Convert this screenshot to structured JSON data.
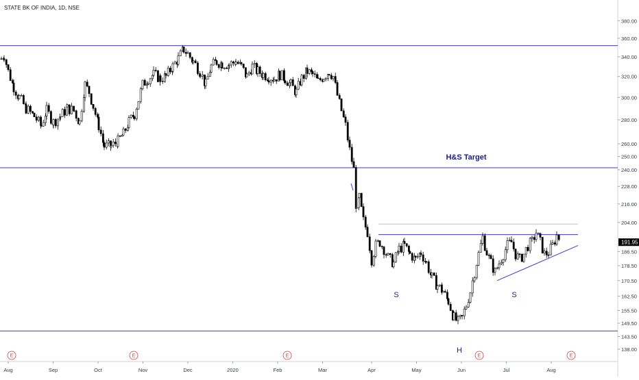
{
  "chart_data": {
    "type": "candlestick",
    "title": "STATE BK OF INDIA, 1D, NSE",
    "y_scale": "log",
    "ylim": [
      138.0,
      395.0
    ],
    "y_ticks": [
      "380.00",
      "360.00",
      "340.00",
      "320.00",
      "300.00",
      "280.00",
      "260.00",
      "250.00",
      "240.00",
      "228.00",
      "216.00",
      "204.00",
      "186.50",
      "178.50",
      "170.50",
      "162.50",
      "155.50",
      "149.50",
      "143.50",
      "138.00"
    ],
    "x_ticks": [
      "Aug",
      "Sep",
      "Oct",
      "Nov",
      "Dec",
      "2020",
      "Feb",
      "Mar",
      "Apr",
      "May",
      "Jun",
      "Jul",
      "Aug"
    ],
    "last_price": "191.95",
    "colors": {
      "up": "#ffffff",
      "down": "#000000",
      "outline": "#000000",
      "line": "#3a3ad6",
      "earnings": "#d23c3c",
      "price_tag": "#000000"
    },
    "horizontal_lines": [
      {
        "name": "resistance-top",
        "y": 352.0
      },
      {
        "name": "hs-target",
        "y": 241.5
      },
      {
        "name": "support-bottom",
        "y": 146.0
      },
      {
        "name": "neckline",
        "y": 196.5
      },
      {
        "name": "neckline-upper",
        "y": 203.0
      }
    ],
    "trendline": {
      "name": "rising-trendline",
      "from": {
        "x": 2020.55,
        "y": 170.5
      },
      "to": {
        "x": 2020.7,
        "y": 190.0
      }
    },
    "annotations": [
      {
        "text": "H&S Target",
        "x": 2020.44,
        "y": 245.0
      },
      {
        "text": "S",
        "x": 2019.75,
        "y": 168.5
      },
      {
        "text": "S",
        "x": 2020.54,
        "y": 168.5
      },
      {
        "text": "H",
        "x": 2020.38,
        "y": 143.0
      }
    ],
    "earnings_markers": [
      {
        "text": "E",
        "x": "Aug"
      },
      {
        "text": "E",
        "x": "Nov"
      },
      {
        "text": "E",
        "x": "Feb"
      },
      {
        "text": "E",
        "x": "Jun"
      },
      {
        "text": "E",
        "x": "Aug"
      }
    ],
    "price_path": [
      [
        0,
        338
      ],
      [
        4,
        342
      ],
      [
        10,
        325
      ],
      [
        18,
        310
      ],
      [
        26,
        300
      ],
      [
        36,
        290
      ],
      [
        48,
        283
      ],
      [
        58,
        275
      ],
      [
        66,
        288
      ],
      [
        76,
        278
      ],
      [
        86,
        283
      ],
      [
        96,
        290
      ],
      [
        106,
        288
      ],
      [
        114,
        278
      ],
      [
        122,
        312
      ],
      [
        128,
        305
      ],
      [
        134,
        292
      ],
      [
        142,
        275
      ],
      [
        150,
        258
      ],
      [
        160,
        258
      ],
      [
        170,
        262
      ],
      [
        178,
        268
      ],
      [
        186,
        278
      ],
      [
        194,
        285
      ],
      [
        200,
        298
      ],
      [
        206,
        312
      ],
      [
        214,
        318
      ],
      [
        222,
        322
      ],
      [
        232,
        318
      ],
      [
        240,
        320
      ],
      [
        250,
        330
      ],
      [
        258,
        338
      ],
      [
        266,
        348
      ],
      [
        272,
        343
      ],
      [
        280,
        335
      ],
      [
        290,
        325
      ],
      [
        298,
        312
      ],
      [
        306,
        330
      ],
      [
        314,
        335
      ],
      [
        322,
        333
      ],
      [
        332,
        332
      ],
      [
        342,
        335
      ],
      [
        350,
        330
      ],
      [
        358,
        320
      ],
      [
        366,
        330
      ],
      [
        374,
        325
      ],
      [
        382,
        322
      ],
      [
        390,
        320
      ],
      [
        398,
        318
      ],
      [
        406,
        322
      ],
      [
        414,
        318
      ],
      [
        422,
        312
      ],
      [
        430,
        305
      ],
      [
        438,
        318
      ],
      [
        446,
        325
      ],
      [
        454,
        322
      ],
      [
        462,
        315
      ],
      [
        470,
        320
      ],
      [
        478,
        325
      ],
      [
        484,
        320
      ],
      [
        490,
        302
      ],
      [
        496,
        288
      ],
      [
        502,
        275
      ],
      [
        508,
        255
      ],
      [
        514,
        240
      ],
      [
        518,
        210
      ],
      [
        522,
        220
      ],
      [
        528,
        205
      ],
      [
        534,
        198
      ],
      [
        540,
        182
      ],
      [
        546,
        190
      ],
      [
        552,
        192
      ],
      [
        558,
        188
      ],
      [
        564,
        183
      ],
      [
        572,
        180
      ],
      [
        580,
        188
      ],
      [
        588,
        190
      ],
      [
        596,
        185
      ],
      [
        604,
        182
      ],
      [
        612,
        186
      ],
      [
        620,
        180
      ],
      [
        628,
        172
      ],
      [
        636,
        168
      ],
      [
        644,
        165
      ],
      [
        652,
        160
      ],
      [
        660,
        152
      ],
      [
        666,
        150
      ],
      [
        672,
        152
      ],
      [
        678,
        158
      ],
      [
        684,
        165
      ],
      [
        690,
        175
      ],
      [
        696,
        185
      ],
      [
        702,
        195
      ],
      [
        708,
        186
      ],
      [
        714,
        180
      ],
      [
        720,
        175
      ],
      [
        726,
        180
      ],
      [
        732,
        185
      ],
      [
        738,
        190
      ],
      [
        744,
        192
      ],
      [
        750,
        185
      ],
      [
        756,
        182
      ],
      [
        762,
        185
      ],
      [
        768,
        190
      ],
      [
        774,
        192
      ],
      [
        780,
        198
      ],
      [
        786,
        192
      ],
      [
        792,
        185
      ],
      [
        798,
        186
      ],
      [
        804,
        190
      ],
      [
        810,
        196
      ],
      [
        816,
        193
      ]
    ]
  },
  "price_axis": {
    "last_price": "191.95"
  }
}
